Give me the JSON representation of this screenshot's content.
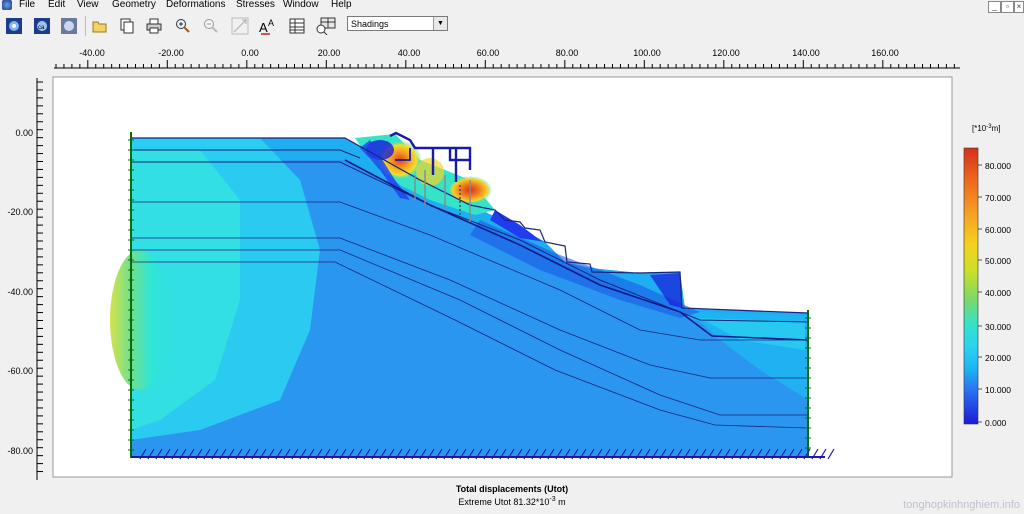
{
  "menu": {
    "items": [
      "File",
      "Edit",
      "View",
      "Geometry",
      "Deformations",
      "Stresses",
      "Window",
      "Help"
    ]
  },
  "toolbar": {
    "display_mode": "Shadings"
  },
  "plot": {
    "x_ticks": [
      "-40.00",
      "-20.00",
      "0.00",
      "20.00",
      "40.00",
      "60.00",
      "80.00",
      "100.00",
      "120.00",
      "140.00",
      "160.00"
    ],
    "y_ticks": [
      "0.00",
      "-20.00",
      "-40.00",
      "-60.00",
      "-80.00"
    ],
    "title": "Total displacements (Utot)",
    "extreme_prefix": "Extreme Utot 81.32*10",
    "extreme_exp": "-3",
    "extreme_unit": " m"
  },
  "legend": {
    "unit_prefix": "[*10",
    "unit_exp": "-3",
    "unit_suffix": "m]",
    "labels": [
      "80.000",
      "70.000",
      "60.000",
      "50.000",
      "40.000",
      "30.000",
      "20.000",
      "10.000",
      "0.000"
    ],
    "colors": [
      "#d6301a",
      "#ee6a1e",
      "#f5a623",
      "#f3d21e",
      "#c8e02a",
      "#7ad86a",
      "#34e3c8",
      "#2bd3f0",
      "#1eb4f2",
      "#2a96f0",
      "#2a70f0",
      "#1f3cf0",
      "#1a1ad8"
    ]
  },
  "watermark": "tonghopkinhnghiem.info"
}
